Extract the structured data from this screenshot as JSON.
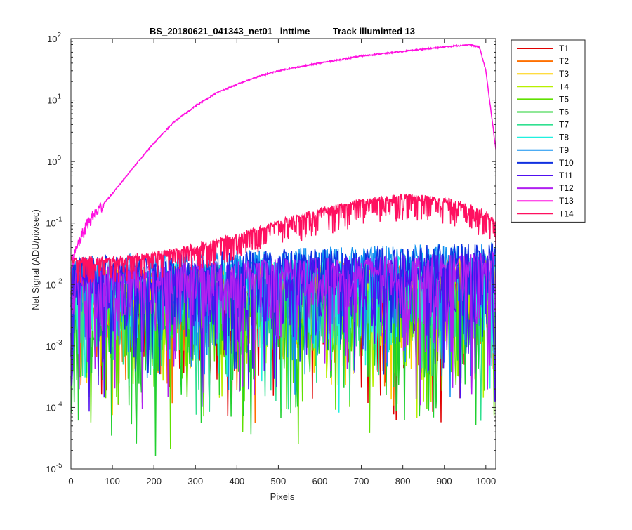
{
  "chart_data": {
    "type": "line",
    "title": "BS_20180621_041343_net01   inttime         Track illuminted 13",
    "xlabel": "Pixels",
    "ylabel": "Net Signal (ADU/pix/sec)",
    "yscale": "log",
    "xlim": [
      0,
      1024
    ],
    "ylim": [
      1e-05,
      100
    ],
    "x_ticks": [
      "0",
      "100",
      "200",
      "300",
      "400",
      "500",
      "600",
      "700",
      "800",
      "900",
      "1000"
    ],
    "y_ticks": [
      {
        "base": "10",
        "exp": "-5"
      },
      {
        "base": "10",
        "exp": "-4"
      },
      {
        "base": "10",
        "exp": "-3"
      },
      {
        "base": "10",
        "exp": "-2"
      },
      {
        "base": "10",
        "exp": "-1"
      },
      {
        "base": "10",
        "exp": "0"
      },
      {
        "base": "10",
        "exp": "1"
      },
      {
        "base": "10",
        "exp": "2"
      }
    ],
    "grid": false,
    "legend_position": "outside-right",
    "series": [
      {
        "name": "T1",
        "color": "#e00000",
        "noise_level": 0.006
      },
      {
        "name": "T2",
        "color": "#ff7000",
        "noise_level": 0.006
      },
      {
        "name": "T3",
        "color": "#ffd000",
        "noise_level": 0.007
      },
      {
        "name": "T4",
        "color": "#b8f000",
        "noise_level": 0.007
      },
      {
        "name": "T5",
        "color": "#60e000",
        "noise_level": 0.008
      },
      {
        "name": "T6",
        "color": "#20d030",
        "noise_level": 0.008
      },
      {
        "name": "T7",
        "color": "#30e090",
        "noise_level": 0.009
      },
      {
        "name": "T8",
        "color": "#20f0e0",
        "noise_level": 0.009
      },
      {
        "name": "T9",
        "color": "#1090f0",
        "noise_level": 0.011
      },
      {
        "name": "T10",
        "color": "#1030e0",
        "noise_level": 0.014
      },
      {
        "name": "T11",
        "color": "#5010f0",
        "noise_level": 0.018
      },
      {
        "name": "T12",
        "color": "#b020f0",
        "noise_level": 0.03
      },
      {
        "name": "T13",
        "color": "#ff10e0",
        "profile": [
          [
            0,
            0.02
          ],
          [
            20,
            0.05
          ],
          [
            40,
            0.1
          ],
          [
            60,
            0.15
          ],
          [
            100,
            0.3
          ],
          [
            150,
            0.8
          ],
          [
            200,
            2
          ],
          [
            250,
            4.5
          ],
          [
            300,
            8
          ],
          [
            350,
            13
          ],
          [
            400,
            18
          ],
          [
            450,
            24
          ],
          [
            500,
            30
          ],
          [
            600,
            40
          ],
          [
            700,
            52
          ],
          [
            800,
            62
          ],
          [
            900,
            73
          ],
          [
            960,
            80
          ],
          [
            985,
            72
          ],
          [
            1000,
            30
          ],
          [
            1024,
            1.6
          ]
        ]
      },
      {
        "name": "T14",
        "color": "#ff1060",
        "profile": [
          [
            0,
            0.025
          ],
          [
            100,
            0.025
          ],
          [
            200,
            0.03
          ],
          [
            300,
            0.04
          ],
          [
            400,
            0.06
          ],
          [
            500,
            0.1
          ],
          [
            600,
            0.15
          ],
          [
            700,
            0.22
          ],
          [
            800,
            0.27
          ],
          [
            900,
            0.23
          ],
          [
            960,
            0.18
          ],
          [
            1000,
            0.14
          ],
          [
            1024,
            0.1
          ]
        ]
      }
    ]
  }
}
